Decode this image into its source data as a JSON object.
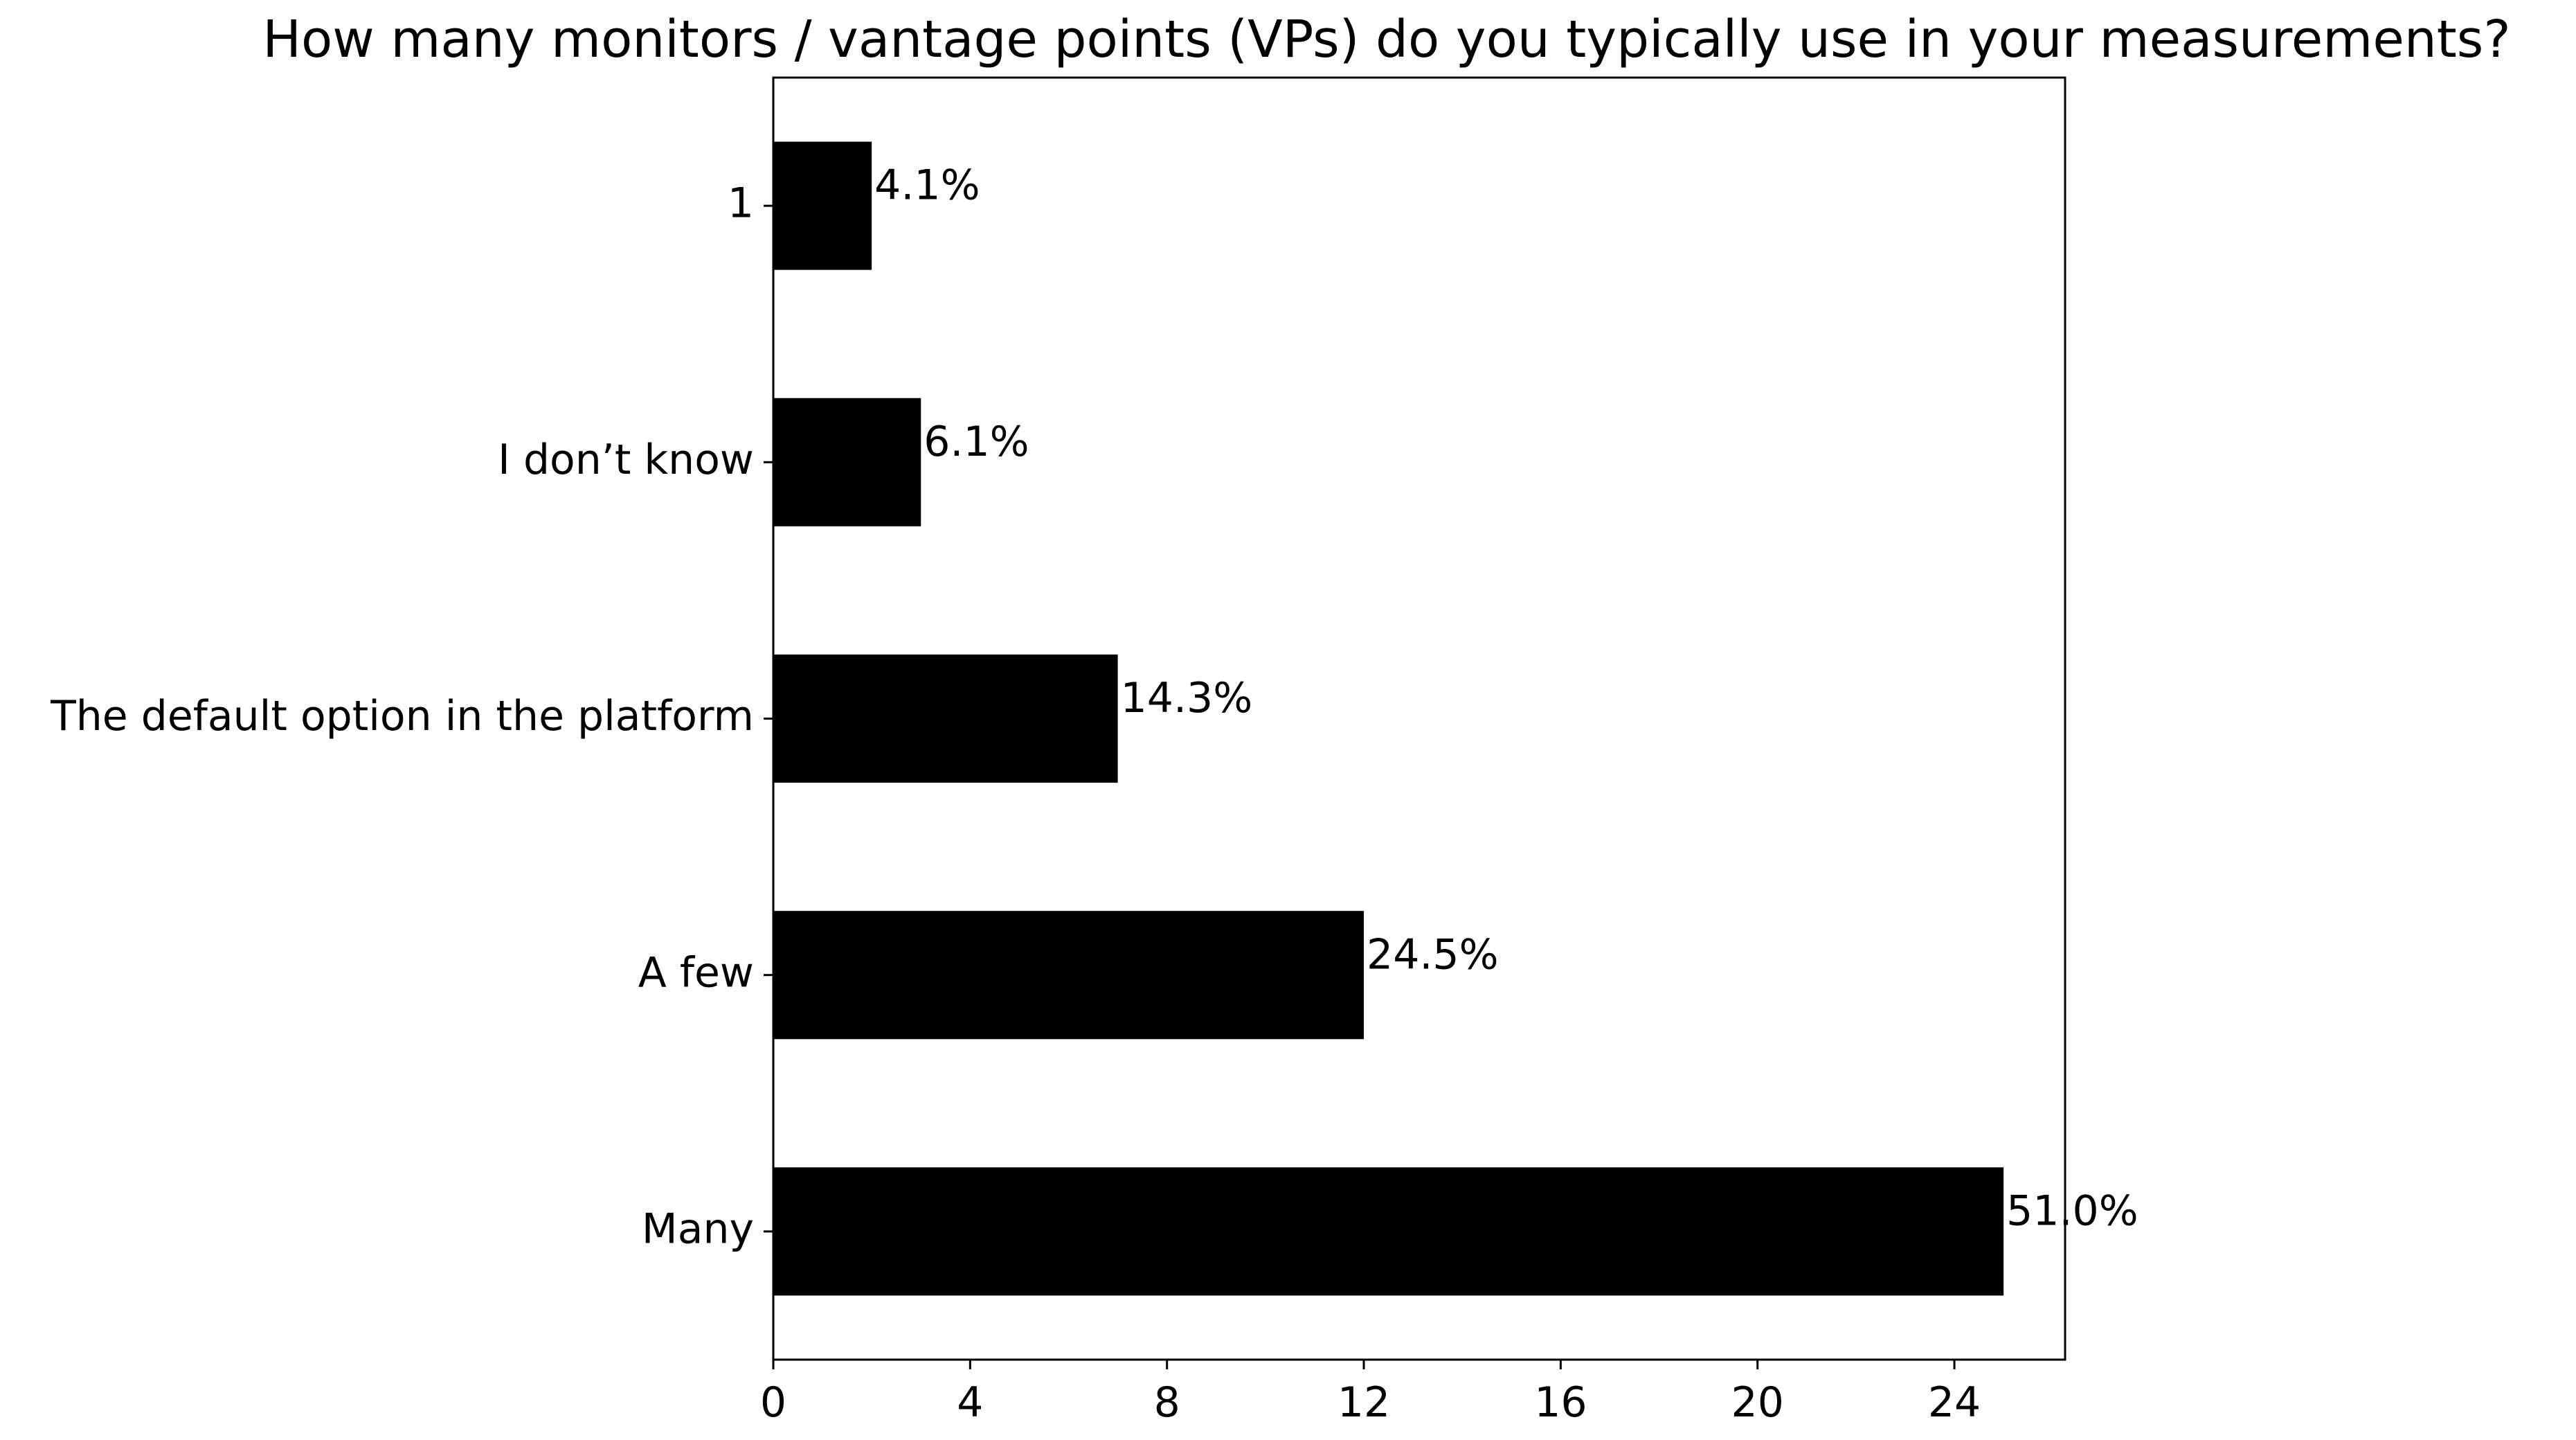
{
  "chart_data": {
    "type": "bar",
    "orientation": "horizontal",
    "title": "How many monitors / vantage points (VPs) do you typically use in your measurements?",
    "xlabel": "",
    "ylabel": "",
    "categories": [
      "1",
      "I don’t know",
      "The default option in the platform",
      "A few",
      "Many"
    ],
    "values": [
      2,
      3,
      7,
      12,
      25
    ],
    "data_labels": [
      "4.1%",
      "6.1%",
      "14.3%",
      "24.5%",
      "51.0%"
    ],
    "xlim": [
      0,
      26.25
    ],
    "xticks": [
      0,
      4,
      8,
      12,
      16,
      20,
      24
    ],
    "xtick_labels": [
      "0",
      "4",
      "8",
      "12",
      "16",
      "20",
      "24"
    ],
    "bar_color": "#000000",
    "grid": false,
    "legend": "none"
  }
}
